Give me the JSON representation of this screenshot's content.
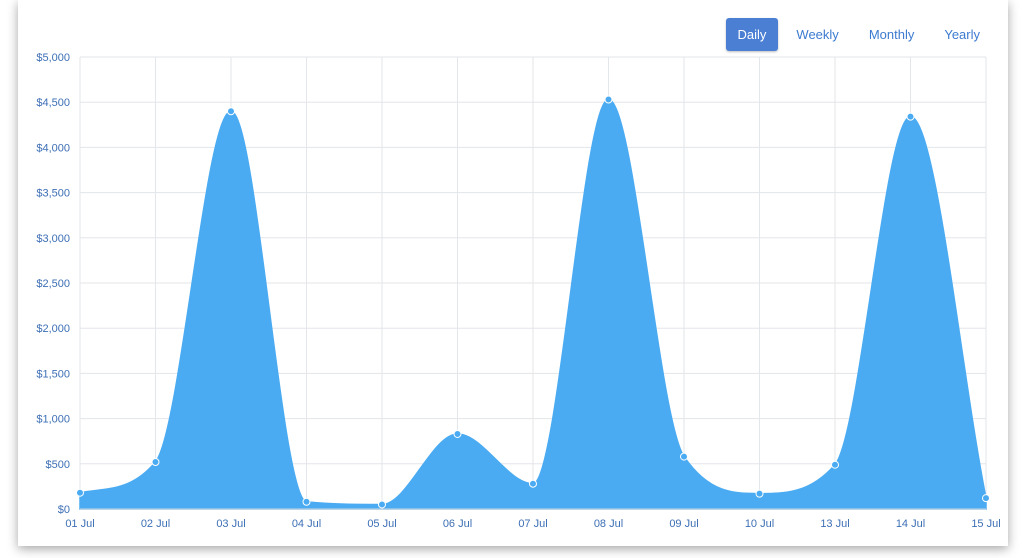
{
  "tabs": [
    {
      "label": "Daily",
      "active": true
    },
    {
      "label": "Weekly",
      "active": false
    },
    {
      "label": "Monthly",
      "active": false
    },
    {
      "label": "Yearly",
      "active": false
    }
  ],
  "colors": {
    "area": "#4aabf2",
    "grid": "#e3e6ea",
    "tick_text": "#3d6fb5",
    "tab_active_bg": "#4a7fd4"
  },
  "chart_data": {
    "type": "area",
    "categories": [
      "01 Jul",
      "02 Jul",
      "03 Jul",
      "04 Jul",
      "05 Jul",
      "06 Jul",
      "07 Jul",
      "08 Jul",
      "09 Jul",
      "10 Jul",
      "13 Jul",
      "14 Jul",
      "15 Jul"
    ],
    "values": [
      180,
      520,
      4400,
      80,
      50,
      830,
      280,
      4530,
      580,
      170,
      490,
      4340,
      120
    ],
    "yticks": [
      "$0",
      "$500",
      "$1,000",
      "$1,500",
      "$2,000",
      "$2,500",
      "$3,000",
      "$3,500",
      "$4,000",
      "$4,500",
      "$5,000"
    ],
    "ylim": [
      0,
      5000
    ],
    "grid": true,
    "title": "",
    "xlabel": "",
    "ylabel": ""
  }
}
